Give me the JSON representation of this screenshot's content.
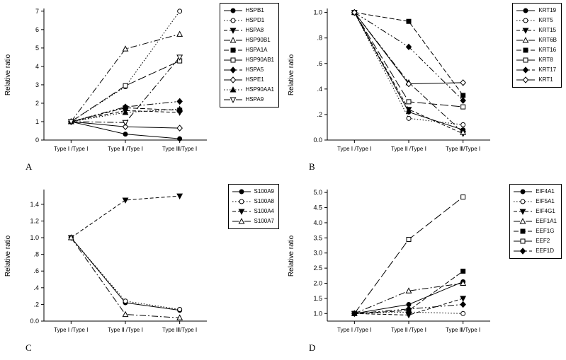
{
  "figure": {
    "background": "#ffffff",
    "line_color": "#000000"
  },
  "chart_data": [
    {
      "panel_label": "A",
      "type": "line",
      "title": "",
      "xlabel": "",
      "ylabel": "Relative ratio",
      "legend_position": "top-right",
      "grid": false,
      "categories": [
        "Type Ⅰ /Type Ⅰ",
        "Type Ⅱ /Type Ⅰ",
        "Type Ⅲ/Type Ⅰ"
      ],
      "ylim": [
        0,
        7.07
      ],
      "yticks": [
        0,
        1,
        2,
        3,
        4,
        5,
        6,
        7
      ],
      "ytick_labels": [
        "0",
        "1",
        "2",
        "3",
        "4",
        "5",
        "6",
        "7"
      ],
      "series": [
        {
          "name": "HSPB1",
          "marker": "circle-filled",
          "line": "solid",
          "values": [
            1,
            0.32,
            0.07
          ]
        },
        {
          "name": "HSPD1",
          "marker": "circle-open",
          "line": "dotted",
          "values": [
            1,
            2.9,
            7.0
          ]
        },
        {
          "name": "HSPA8",
          "marker": "triangle-down-filled",
          "line": "dash",
          "values": [
            1,
            1.6,
            1.5
          ]
        },
        {
          "name": "HSP90B1",
          "marker": "triangle-up-open",
          "line": "dashdot",
          "values": [
            1,
            4.95,
            5.75
          ]
        },
        {
          "name": "HSPA1A",
          "marker": "square-filled",
          "line": "mediumdash",
          "values": [
            1,
            1.75,
            1.62
          ]
        },
        {
          "name": "HSP90AB1",
          "marker": "square-open",
          "line": "longdash",
          "values": [
            1,
            2.95,
            4.3
          ]
        },
        {
          "name": "HSPA5",
          "marker": "diamond-filled",
          "line": "dashdotdot",
          "values": [
            1,
            1.8,
            2.1
          ]
        },
        {
          "name": "HSPE1",
          "marker": "diamond-open",
          "line": "solid",
          "values": [
            1,
            0.72,
            0.65
          ]
        },
        {
          "name": "HSP90AA1",
          "marker": "triangle-up-filled",
          "line": "dotted",
          "values": [
            1,
            1.5,
            1.68
          ]
        },
        {
          "name": "HSPA9",
          "marker": "triangle-down-open",
          "line": "dashdot",
          "values": [
            1,
            0.95,
            4.5
          ]
        }
      ]
    },
    {
      "panel_label": "B",
      "type": "line",
      "title": "",
      "xlabel": "",
      "ylabel": "Relative ratio",
      "legend_position": "top-right",
      "grid": false,
      "categories": [
        "Type Ⅰ /Type Ⅰ",
        "Type Ⅱ /Type Ⅰ",
        "Type Ⅲ/Type Ⅰ"
      ],
      "ylim": [
        0,
        1.02
      ],
      "yticks": [
        0,
        0.2,
        0.4,
        0.6,
        0.8,
        1.0
      ],
      "ytick_labels": [
        "0.0",
        ".2",
        ".4",
        ".6",
        ".8",
        "1.0"
      ],
      "series": [
        {
          "name": "KRT19",
          "marker": "circle-filled",
          "line": "solid",
          "values": [
            1,
            0.22,
            0.08
          ]
        },
        {
          "name": "KRT5",
          "marker": "circle-open",
          "line": "dotted",
          "values": [
            1,
            0.17,
            0.12
          ]
        },
        {
          "name": "KRT15",
          "marker": "triangle-down-filled",
          "line": "dash",
          "values": [
            1,
            0.24,
            0.05
          ]
        },
        {
          "name": "KRT6B",
          "marker": "triangle-up-open",
          "line": "dashdot",
          "values": [
            1,
            0.45,
            0.06
          ]
        },
        {
          "name": "KRT16",
          "marker": "square-filled",
          "line": "mediumdash",
          "values": [
            1,
            0.93,
            0.35
          ]
        },
        {
          "name": "KRT8",
          "marker": "square-open",
          "line": "longdash",
          "values": [
            1,
            0.3,
            0.26
          ]
        },
        {
          "name": "KRT17",
          "marker": "diamond-filled",
          "line": "dashdotdot",
          "values": [
            1,
            0.73,
            0.31
          ]
        },
        {
          "name": "KRT1",
          "marker": "diamond-open",
          "line": "solid",
          "values": [
            1,
            0.44,
            0.45
          ]
        }
      ]
    },
    {
      "panel_label": "C",
      "type": "line",
      "title": "",
      "xlabel": "",
      "ylabel": "Relative ratio",
      "legend_position": "top-right",
      "grid": false,
      "categories": [
        "Type Ⅰ /Type Ⅰ",
        "Type Ⅱ /Type Ⅰ",
        "Type Ⅲ/Type Ⅰ"
      ],
      "ylim": [
        0,
        1.56
      ],
      "yticks": [
        0,
        0.2,
        0.4,
        0.6,
        0.8,
        1.0,
        1.2,
        1.4
      ],
      "ytick_labels": [
        "0.0",
        ".2",
        ".4",
        ".6",
        ".8",
        "1.0",
        "1.2",
        "1.4"
      ],
      "series": [
        {
          "name": "S100A9",
          "marker": "circle-filled",
          "line": "solid",
          "values": [
            1,
            0.22,
            0.13
          ]
        },
        {
          "name": "S100A8",
          "marker": "circle-open",
          "line": "dotted",
          "values": [
            1,
            0.24,
            0.14
          ]
        },
        {
          "name": "S100A4",
          "marker": "triangle-down-filled",
          "line": "dash",
          "values": [
            1,
            1.45,
            1.5
          ]
        },
        {
          "name": "S100A7",
          "marker": "triangle-up-open",
          "line": "dashdot",
          "values": [
            1,
            0.08,
            0.04
          ]
        }
      ]
    },
    {
      "panel_label": "D",
      "type": "line",
      "title": "",
      "xlabel": "",
      "ylabel": "Relative ratio",
      "legend_position": "top-right",
      "grid": false,
      "categories": [
        "Type Ⅰ /Type Ⅰ",
        "Type Ⅱ /Type Ⅰ",
        "Type Ⅲ/Type Ⅰ"
      ],
      "ylim": [
        0.75,
        5.05
      ],
      "yticks": [
        1.0,
        1.5,
        2.0,
        2.5,
        3.0,
        3.5,
        4.0,
        4.5,
        5.0
      ],
      "ytick_labels": [
        "1.0",
        "1.5",
        "2.0",
        "2.5",
        "3.0",
        "3.5",
        "4.0",
        "4.5",
        "5.0"
      ],
      "series": [
        {
          "name": "EIF4A1",
          "marker": "circle-filled",
          "line": "solid",
          "values": [
            1,
            1.3,
            2.05
          ]
        },
        {
          "name": "EIF5A1",
          "marker": "circle-open",
          "line": "dotted",
          "values": [
            1,
            1.05,
            1.0
          ]
        },
        {
          "name": "EIF4G1",
          "marker": "triangle-down-filled",
          "line": "dash",
          "values": [
            1,
            0.95,
            1.5
          ]
        },
        {
          "name": "EEF1A1",
          "marker": "triangle-up-open",
          "line": "dashdot",
          "values": [
            1,
            1.75,
            2.0
          ]
        },
        {
          "name": "EEF1G",
          "marker": "square-filled",
          "line": "mediumdash",
          "values": [
            1,
            1.1,
            2.4
          ]
        },
        {
          "name": "EEF2",
          "marker": "square-open",
          "line": "longdash",
          "values": [
            1,
            3.45,
            4.85
          ]
        },
        {
          "name": "EEF1D",
          "marker": "diamond-filled",
          "line": "dashdotdot",
          "values": [
            1,
            1.15,
            1.3
          ]
        }
      ]
    }
  ]
}
